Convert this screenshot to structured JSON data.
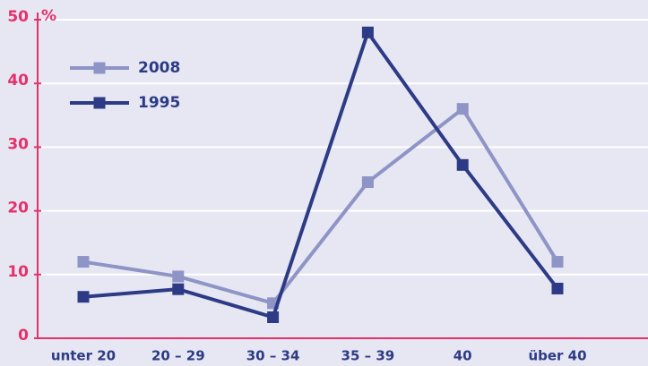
{
  "chart_data": {
    "type": "line",
    "y_unit": "%",
    "categories": [
      "unter 20",
      "20 – 29",
      "30 – 34",
      "35 – 39",
      "40",
      "über 40"
    ],
    "series": [
      {
        "name": "2008",
        "color": "#8e94c6",
        "values": [
          12,
          9.7,
          5.5,
          24.5,
          36,
          12
        ]
      },
      {
        "name": "1995",
        "color": "#2d3b86",
        "values": [
          6.5,
          7.7,
          3.3,
          48,
          27.2,
          7.8
        ]
      }
    ],
    "ylim": [
      0,
      50
    ],
    "yticks": [
      0,
      10,
      20,
      30,
      40,
      50
    ],
    "grid": true,
    "legend": "upper left",
    "axis_color": "#e5316a"
  }
}
